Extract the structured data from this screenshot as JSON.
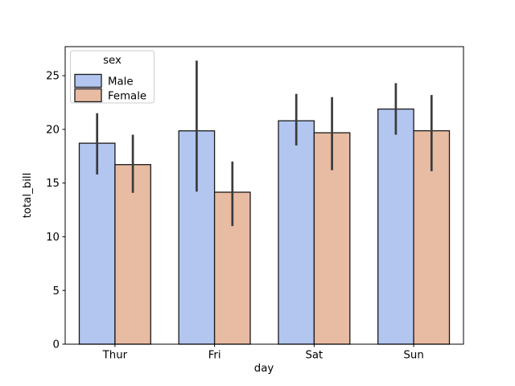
{
  "figure": {
    "background": "#ffffff"
  },
  "chart_data": {
    "type": "bar",
    "title": "",
    "xlabel": "day",
    "ylabel": "total_bill",
    "categories": [
      "Thur",
      "Fri",
      "Sat",
      "Sun"
    ],
    "series": [
      {
        "name": "Male",
        "color": "#b3c6f0",
        "values": [
          18.71,
          19.86,
          20.8,
          21.89
        ],
        "ci": [
          [
            15.8,
            21.5
          ],
          [
            14.2,
            26.4
          ],
          [
            18.5,
            23.3
          ],
          [
            19.5,
            24.3
          ]
        ]
      },
      {
        "name": "Female",
        "color": "#e8bba3",
        "values": [
          16.72,
          14.15,
          19.68,
          19.87
        ],
        "ci": [
          [
            14.1,
            19.5
          ],
          [
            11.0,
            17.0
          ],
          [
            16.2,
            23.0
          ],
          [
            16.1,
            23.2
          ]
        ]
      }
    ],
    "ylim": [
      0,
      27.7
    ],
    "yticks": [
      0,
      5,
      10,
      15,
      20,
      25
    ],
    "legend": {
      "title": "sex",
      "position": "upper left"
    },
    "grid": false,
    "bar_edge_color": "#1a1a1a",
    "error_bar_color": "#3b3b3b",
    "spine_color": "#000000",
    "legend_border_color": "#cccccc",
    "legend_background": "#ffffff"
  }
}
